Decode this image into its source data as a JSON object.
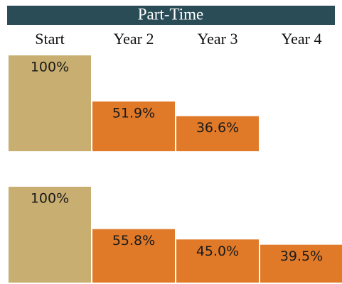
{
  "chart_data": {
    "type": "bar",
    "title": "Part-Time",
    "categories": [
      "Start",
      "Year 2",
      "Year 3",
      "Year 4"
    ],
    "series": [
      {
        "colors": [
          "#c8ae70",
          "#e07a28",
          "#e07a28",
          "#e07a28"
        ],
        "values": [
          100,
          51.9,
          36.6,
          null
        ],
        "value_labels": [
          "100%",
          "51.9%",
          "36.6%",
          null
        ]
      },
      {
        "colors": [
          "#c8ae70",
          "#e07a28",
          "#e07a28",
          "#e07a28"
        ],
        "values": [
          100,
          55.8,
          45.0,
          39.5
        ],
        "value_labels": [
          "100%",
          "55.8%",
          "45.0%",
          "39.5%"
        ]
      }
    ]
  }
}
